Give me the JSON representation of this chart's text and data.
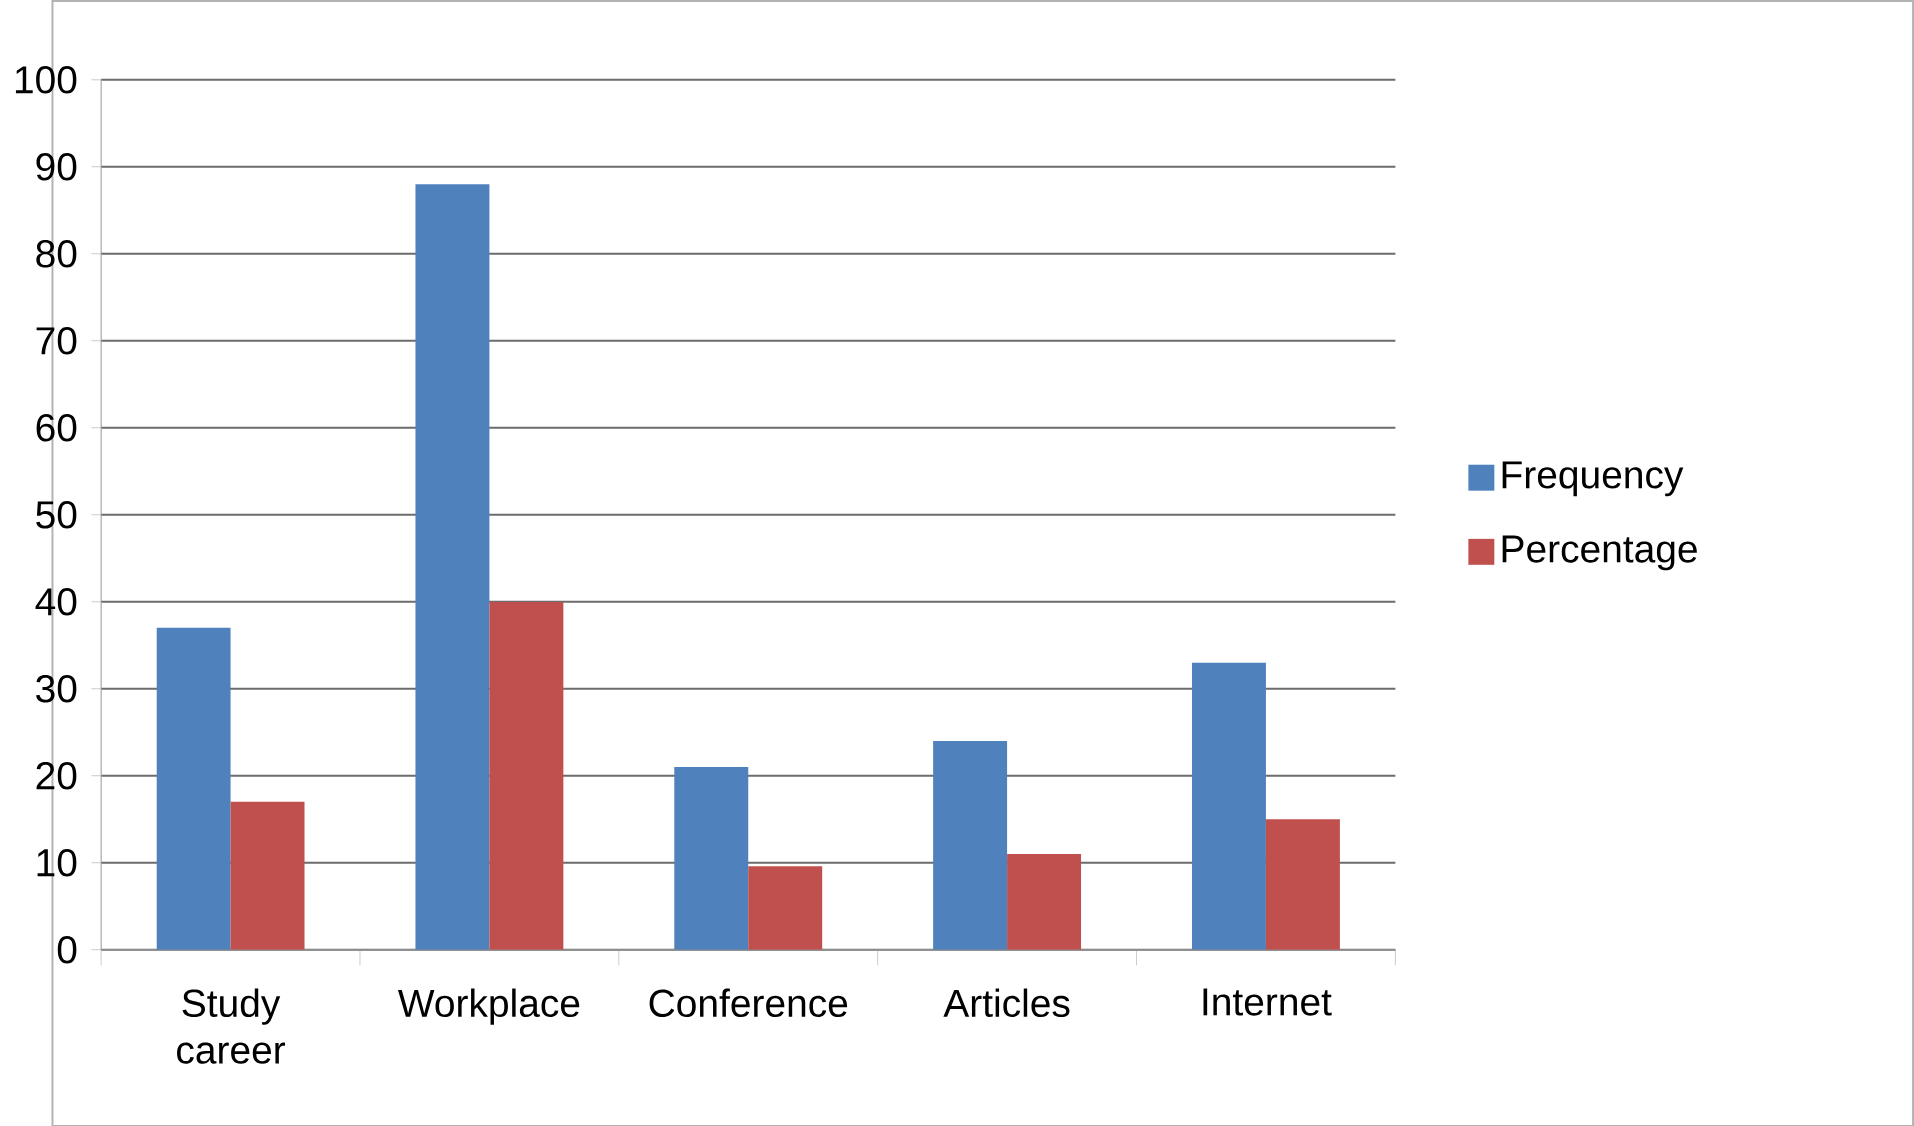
{
  "chart_data": {
    "type": "bar",
    "categories": [
      "Study career",
      "Workplace",
      "Conference",
      "Articles",
      "Internet"
    ],
    "series": [
      {
        "name": "Frequency",
        "color": "#4f81bd",
        "values": [
          37,
          88,
          21,
          24,
          33
        ]
      },
      {
        "name": "Percentage",
        "color": "#c0504d",
        "values": [
          17,
          40,
          9.6,
          11,
          15
        ]
      }
    ],
    "ylim": [
      0,
      100
    ],
    "yticks": [
      0,
      10,
      20,
      30,
      40,
      50,
      60,
      70,
      80,
      90,
      100
    ],
    "grid": "y",
    "legend": "right"
  }
}
